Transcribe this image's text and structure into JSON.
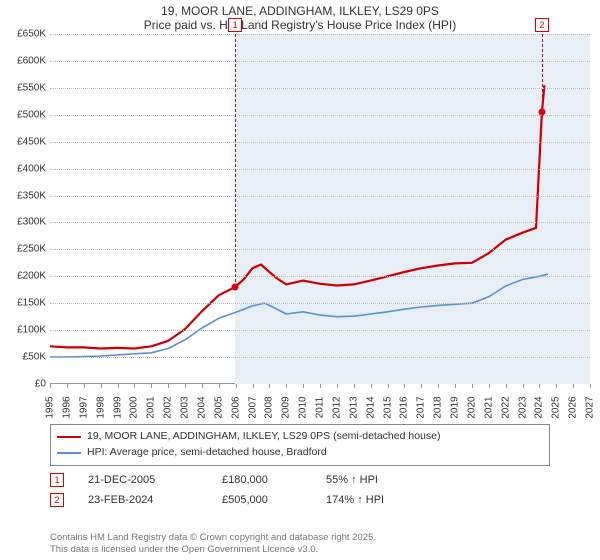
{
  "title_line1": "19, MOOR LANE, ADDINGHAM, ILKLEY, LS29 0PS",
  "title_line2": "Price paid vs. HM Land Registry's House Price Index (HPI)",
  "chart": {
    "type": "line",
    "background_color": "#ffffff",
    "shade_color": "#e8eef6",
    "grid_color": "#bbbbbb",
    "axis_color": "#999999",
    "x_years": [
      1995,
      1996,
      1997,
      1998,
      1999,
      2000,
      2001,
      2002,
      2003,
      2004,
      2005,
      2006,
      2007,
      2008,
      2009,
      2010,
      2011,
      2012,
      2013,
      2014,
      2015,
      2016,
      2017,
      2018,
      2019,
      2020,
      2021,
      2022,
      2023,
      2024,
      2025,
      2026,
      2027
    ],
    "xlim": [
      1995,
      2027
    ],
    "ylim": [
      0,
      650
    ],
    "ytick_step": 50,
    "ylabel_prefix": "£",
    "ylabel_suffix": "K",
    "label_fontsize": 10,
    "series": [
      {
        "name": "price_paid",
        "color": "#cc0000",
        "width": 2.2,
        "label": "19, MOOR LANE, ADDINGHAM, ILKLEY, LS29 0PS (semi-detached house)",
        "points": [
          [
            1995,
            70
          ],
          [
            1996,
            68
          ],
          [
            1997,
            68
          ],
          [
            1998,
            66
          ],
          [
            1999,
            67
          ],
          [
            2000,
            66
          ],
          [
            2001,
            70
          ],
          [
            2002,
            80
          ],
          [
            2003,
            102
          ],
          [
            2004,
            135
          ],
          [
            2005,
            165
          ],
          [
            2005.97,
            180
          ],
          [
            2006.5,
            195
          ],
          [
            2007,
            215
          ],
          [
            2007.5,
            222
          ],
          [
            2008,
            208
          ],
          [
            2008.5,
            195
          ],
          [
            2009,
            185
          ],
          [
            2010,
            192
          ],
          [
            2011,
            186
          ],
          [
            2012,
            183
          ],
          [
            2013,
            185
          ],
          [
            2014,
            192
          ],
          [
            2015,
            200
          ],
          [
            2016,
            208
          ],
          [
            2017,
            215
          ],
          [
            2018,
            220
          ],
          [
            2019,
            224
          ],
          [
            2020,
            225
          ],
          [
            2021,
            243
          ],
          [
            2022,
            268
          ],
          [
            2023,
            281
          ],
          [
            2023.8,
            290
          ],
          [
            2024.15,
            505
          ],
          [
            2024.3,
            555
          ]
        ]
      },
      {
        "name": "hpi",
        "color": "#5b8fd6",
        "width": 1.6,
        "label": "HPI: Average price, semi-detached house, Bradford",
        "points": [
          [
            1995,
            50
          ],
          [
            1996,
            50
          ],
          [
            1997,
            51
          ],
          [
            1998,
            52
          ],
          [
            1999,
            54
          ],
          [
            2000,
            56
          ],
          [
            2001,
            58
          ],
          [
            2002,
            66
          ],
          [
            2003,
            82
          ],
          [
            2004,
            104
          ],
          [
            2005,
            122
          ],
          [
            2006,
            133
          ],
          [
            2007,
            145
          ],
          [
            2007.7,
            150
          ],
          [
            2008,
            146
          ],
          [
            2009,
            130
          ],
          [
            2010,
            134
          ],
          [
            2011,
            128
          ],
          [
            2012,
            125
          ],
          [
            2013,
            126
          ],
          [
            2014,
            130
          ],
          [
            2015,
            134
          ],
          [
            2016,
            139
          ],
          [
            2017,
            143
          ],
          [
            2018,
            146
          ],
          [
            2019,
            148
          ],
          [
            2020,
            150
          ],
          [
            2021,
            162
          ],
          [
            2022,
            182
          ],
          [
            2023,
            194
          ],
          [
            2024,
            200
          ],
          [
            2024.5,
            204
          ]
        ]
      }
    ],
    "markers": [
      {
        "id": "1",
        "x": 2005.97,
        "y": 180
      },
      {
        "id": "2",
        "x": 2024.15,
        "y": 505
      }
    ],
    "shade_from_x": 2005.97
  },
  "legend": {
    "items": [
      {
        "series": "price_paid"
      },
      {
        "series": "hpi"
      }
    ]
  },
  "events": [
    {
      "marker": "1",
      "date": "21-DEC-2005",
      "price": "£180,000",
      "hpi": "55% ↑ HPI"
    },
    {
      "marker": "2",
      "date": "23-FEB-2024",
      "price": "£505,000",
      "hpi": "174% ↑ HPI"
    }
  ],
  "footer_line1": "Contains HM Land Registry data © Crown copyright and database right 2025.",
  "footer_line2": "This data is licensed under the Open Government Licence v3.0."
}
